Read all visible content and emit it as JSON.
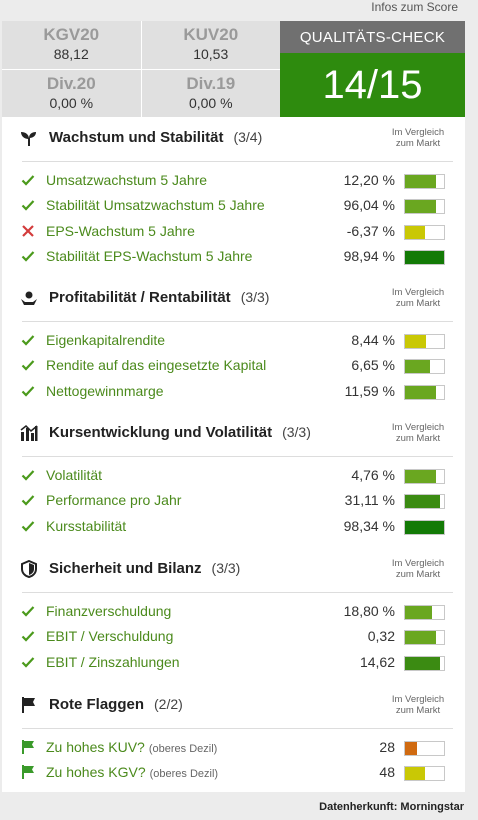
{
  "top_link": "Infos zum Score",
  "metrics": {
    "kgv": {
      "label": "KGV20",
      "value": "88,12"
    },
    "kuv": {
      "label": "KUV20",
      "value": "10,53"
    },
    "div20": {
      "label": "Div.20",
      "value": "0,00 %"
    },
    "div19": {
      "label": "Div.19",
      "value": "0,00 %"
    }
  },
  "quality": {
    "title": "QUALITÄTS-CHECK",
    "score": "14/15"
  },
  "compare_label": "Im Vergleich zum Markt",
  "colors": {
    "check": "#4b9a1c",
    "cross": "#d33c3c",
    "flag": "#3a9a2a",
    "green_dark": "#137a06",
    "green_mid": "#3b8b12",
    "green_light": "#6aa720",
    "yellow": "#c9c805",
    "orange": "#d06a10"
  },
  "sections": [
    {
      "title": "Wachstum und Stabilität",
      "count": "(3/4)",
      "icon": "sprout-icon",
      "rows": [
        {
          "status": "check",
          "label": "Umsatzwachstum 5 Jahre",
          "value": "12,20 %",
          "bar_level": 0.8,
          "bar_color": "green_light"
        },
        {
          "status": "check",
          "label": "Stabilität Umsatzwachstum 5 Jahre",
          "value": "96,04 %",
          "bar_level": 0.8,
          "bar_color": "green_light"
        },
        {
          "status": "cross",
          "label": "EPS-Wachstum 5 Jahre",
          "value": "-6,37 %",
          "bar_level": 0.5,
          "bar_color": "yellow"
        },
        {
          "status": "check",
          "label": "Stabilität EPS-Wachstum 5 Jahre",
          "value": "98,94 %",
          "bar_level": 1.0,
          "bar_color": "green_dark"
        }
      ]
    },
    {
      "title": "Profitabilität / Rentabilität",
      "count": "(3/3)",
      "icon": "money-hand-icon",
      "rows": [
        {
          "status": "check",
          "label": "Eigenkapitalrendite",
          "value": "8,44 %",
          "bar_level": 0.55,
          "bar_color": "yellow"
        },
        {
          "status": "check",
          "label": "Rendite auf das eingesetzte Kapital",
          "value": "6,65 %",
          "bar_level": 0.65,
          "bar_color": "green_light"
        },
        {
          "status": "check",
          "label": "Nettogewinnmarge",
          "value": "11,59 %",
          "bar_level": 0.8,
          "bar_color": "green_light"
        }
      ]
    },
    {
      "title": "Kursentwicklung und Volatilität",
      "count": "(3/3)",
      "icon": "chart-bars-icon",
      "rows": [
        {
          "status": "check",
          "label": "Volatilität",
          "value": "4,76 %",
          "bar_level": 0.8,
          "bar_color": "green_light"
        },
        {
          "status": "check",
          "label": "Performance pro Jahr",
          "value": "31,11 %",
          "bar_level": 0.9,
          "bar_color": "green_mid"
        },
        {
          "status": "check",
          "label": "Kursstabilität",
          "value": "98,34 %",
          "bar_level": 1.0,
          "bar_color": "green_dark"
        }
      ]
    },
    {
      "title": "Sicherheit und Bilanz",
      "count": "(3/3)",
      "icon": "shield-icon",
      "rows": [
        {
          "status": "check",
          "label": "Finanzverschuldung",
          "value": "18,80 %",
          "bar_level": 0.7,
          "bar_color": "green_light"
        },
        {
          "status": "check",
          "label": "EBIT / Verschuldung",
          "value": "0,32",
          "bar_level": 0.8,
          "bar_color": "green_light"
        },
        {
          "status": "check",
          "label": "EBIT / Zinszahlungen",
          "value": "14,62",
          "bar_level": 0.9,
          "bar_color": "green_mid"
        }
      ]
    },
    {
      "title": "Rote Flaggen",
      "count": "(2/2)",
      "icon": "flag-icon",
      "rows": [
        {
          "status": "flag",
          "label": "Zu hohes KUV?",
          "sub": "(oberes Dezil)",
          "value": "28",
          "bar_level": 0.3,
          "bar_color": "orange"
        },
        {
          "status": "flag",
          "label": "Zu hohes KGV?",
          "sub": "(oberes Dezil)",
          "value": "48",
          "bar_level": 0.5,
          "bar_color": "yellow"
        }
      ]
    }
  ],
  "footer": {
    "source": "Datenherkunft: Morningstar"
  }
}
